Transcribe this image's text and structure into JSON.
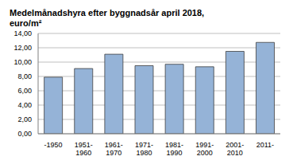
{
  "chart_data": {
    "type": "bar",
    "title": "Medelmånadshyra efter byggnadsår april 2018,\neuro/m²",
    "categories": [
      "-1950",
      "1951-\n1960",
      "1961-\n1970",
      "1971-\n1980",
      "1981-\n1990",
      "1991-\n2000",
      "2001-\n2010",
      "2011-"
    ],
    "values": [
      7.9,
      9.1,
      11.1,
      9.5,
      9.7,
      9.35,
      11.5,
      12.75
    ],
    "color": "#95b3d7",
    "ylim": [
      0,
      14
    ],
    "yticks": [
      {
        "value": 0,
        "label": "0,00"
      },
      {
        "value": 2,
        "label": "2,00"
      },
      {
        "value": 4,
        "label": "4,00"
      },
      {
        "value": 6,
        "label": "6,00"
      },
      {
        "value": 8,
        "label": "8,00"
      },
      {
        "value": 10,
        "label": "10,00"
      },
      {
        "value": 12,
        "label": "12,00"
      },
      {
        "value": 14,
        "label": "14,00"
      }
    ],
    "grid": true
  }
}
